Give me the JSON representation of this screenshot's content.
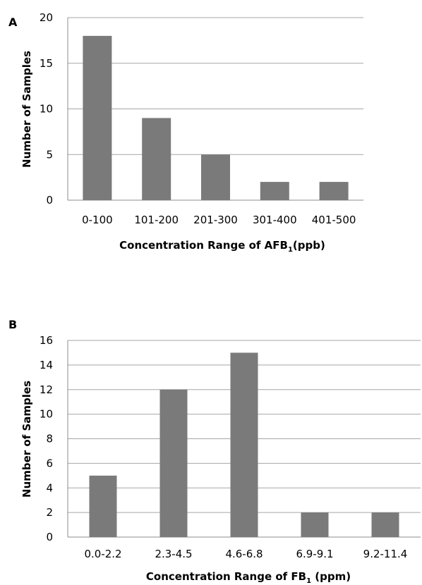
{
  "chart_data": [
    {
      "type": "bar",
      "panel": "A",
      "categories": [
        "0-100",
        "101-200",
        "201-300",
        "301-400",
        "401-500"
      ],
      "values": [
        18,
        9,
        5,
        2,
        2
      ],
      "xlabel": "Concentration Range of AFB",
      "xlabel_sub": "1",
      "xlabel_tail": "(ppb)",
      "ylabel": "Number of Samples",
      "ylim": [
        0,
        20
      ],
      "yticks": [
        0,
        5,
        10,
        15,
        20
      ],
      "grid": true,
      "bar_color": "#7a7a7a"
    },
    {
      "type": "bar",
      "panel": "B",
      "categories": [
        "0.0-2.2",
        "2.3-4.5",
        "4.6-6.8",
        "6.9-9.1",
        "9.2-11.4"
      ],
      "values": [
        5,
        12,
        15,
        2,
        2
      ],
      "xlabel": "Concentration Range of FB",
      "xlabel_sub": "1",
      "xlabel_tail": " (ppm)",
      "ylabel": "Number of Samples",
      "ylim": [
        0,
        16
      ],
      "yticks": [
        0,
        2,
        4,
        6,
        8,
        10,
        12,
        14,
        16
      ],
      "grid": true,
      "bar_color": "#7a7a7a"
    }
  ]
}
